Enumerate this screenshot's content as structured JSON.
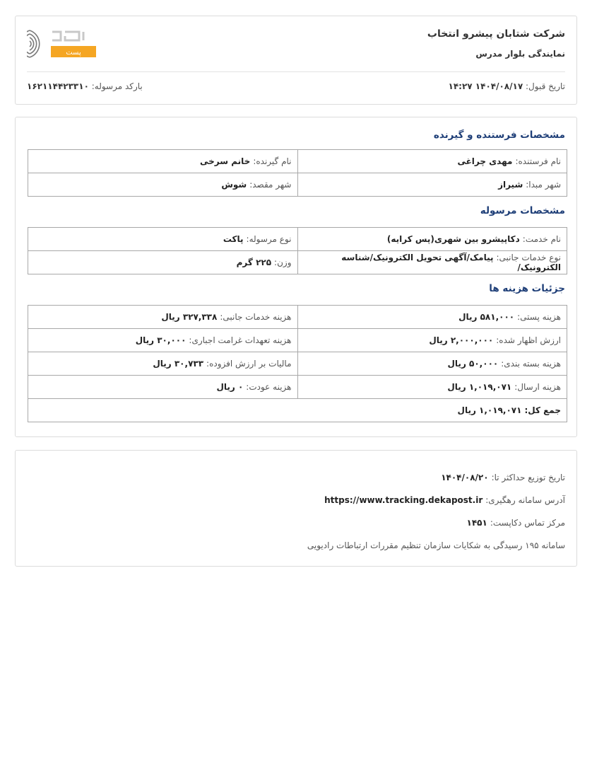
{
  "header": {
    "company": "شرکت شتابان پیشرو انتخاب",
    "branch": "نمایندگی بلوار مدرس",
    "accept_date_label": "تاریخ قبول:",
    "accept_date": "۱۴۰۴/۰۸/۱۷ ۱۴:۲۷",
    "barcode_label": "بارکد مرسوله:",
    "barcode": "۱۶۲۱۱۴۴۲۳۳۱۰",
    "logo_text": "دکا پست",
    "logo_accent": "#f5a623"
  },
  "parties": {
    "title": "مشخصات فرستنده و گیرنده",
    "rows": [
      [
        {
          "label": "نام فرستنده:",
          "value": "مهدی چراغی"
        },
        {
          "label": "نام گیرنده:",
          "value": "خانم سرخی"
        }
      ],
      [
        {
          "label": "شهر مبدا:",
          "value": "شیراز"
        },
        {
          "label": "شهر مقصد:",
          "value": "شوش"
        }
      ]
    ]
  },
  "shipment": {
    "title": "مشخصات مرسوله",
    "rows": [
      [
        {
          "label": "نام خدمت:",
          "value": "دکاپیشرو بین شهری(پس کرایه)"
        },
        {
          "label": "نوع مرسوله:",
          "value": "پاکت"
        }
      ],
      [
        {
          "label": "نوع خدمات جانبی:",
          "value": "پیامک/آگهی تحویل الکترونیک/شناسه الکترونیک/"
        },
        {
          "label": "وزن:",
          "value": "۲۲۵ گرم"
        }
      ]
    ]
  },
  "costs": {
    "title": "جزئیات هزینه ها",
    "rows": [
      [
        {
          "label": "هزینه پستی:",
          "value": "۵۸۱,۰۰۰ ریال"
        },
        {
          "label": "هزینه خدمات جانبی:",
          "value": "۳۲۷,۳۳۸ ریال"
        }
      ],
      [
        {
          "label": "ارزش اظهار شده:",
          "value": "۲,۰۰۰,۰۰۰ ریال"
        },
        {
          "label": "هزینه تعهدات غرامت اجباری:",
          "value": "۳۰,۰۰۰ ریال"
        }
      ],
      [
        {
          "label": "هزینه بسته بندی:",
          "value": "۵۰,۰۰۰ ریال"
        },
        {
          "label": "مالیات بر ارزش افزوده:",
          "value": "۳۰,۷۳۳ ریال"
        }
      ],
      [
        {
          "label": "هزینه ارسال:",
          "value": "۱,۰۱۹,۰۷۱ ریال"
        },
        {
          "label": "هزینه عودت:",
          "value": "۰ ریال"
        }
      ]
    ],
    "total_label": "جمع کل:",
    "total": "۱,۰۱۹,۰۷۱ ریال"
  },
  "footer": {
    "delivery_label": "تاریخ توزیع حداکثر تا:",
    "delivery_date": "۱۴۰۴/۰۸/۲۰",
    "tracking_label": "آدرس سامانه رهگیری:",
    "tracking_url": "https://www.tracking.dekapost.ir",
    "contact_label": "مرکز تماس دکاپست:",
    "contact": "۱۴۵۱",
    "complaint": "سامانه ۱۹۵ رسیدگی به شکایات سازمان تنظیم مقررات ارتباطات رادیویی"
  }
}
